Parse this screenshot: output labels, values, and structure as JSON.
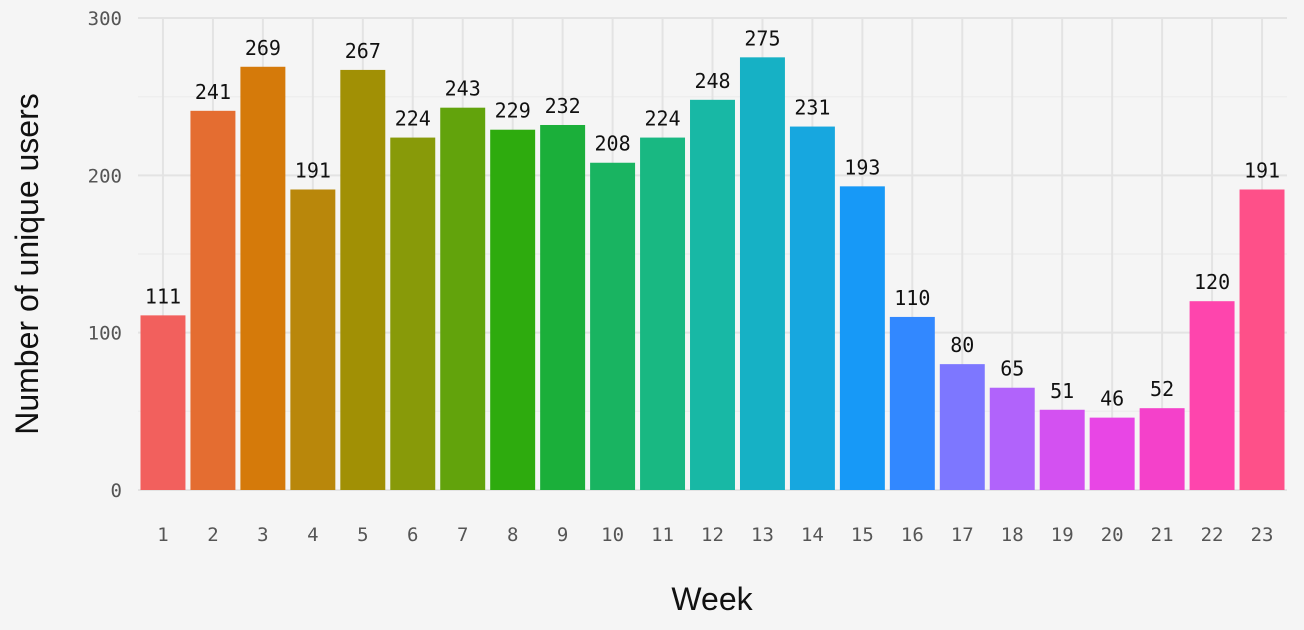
{
  "chart_data": {
    "type": "bar",
    "categories": [
      "1",
      "2",
      "3",
      "4",
      "5",
      "6",
      "7",
      "8",
      "9",
      "10",
      "11",
      "12",
      "13",
      "14",
      "15",
      "16",
      "17",
      "18",
      "19",
      "20",
      "21",
      "22",
      "23"
    ],
    "values": [
      111,
      241,
      269,
      191,
      267,
      224,
      243,
      229,
      232,
      208,
      224,
      248,
      275,
      231,
      193,
      110,
      80,
      65,
      51,
      46,
      52,
      120,
      191
    ],
    "colors": [
      "#f2605d",
      "#e46d31",
      "#d57a0a",
      "#b9870b",
      "#a19005",
      "#889a09",
      "#62a30c",
      "#2eab0e",
      "#1baf3a",
      "#19b461",
      "#19b882",
      "#18b8a5",
      "#16b1c5",
      "#17a7df",
      "#1799f7",
      "#3288ff",
      "#7d77ff",
      "#b163fb",
      "#d351f1",
      "#e846e5",
      "#f441ca",
      "#fe45ad",
      "#fe5089"
    ],
    "xlabel": "Week",
    "ylabel": "Number of unique users",
    "ylim": [
      0,
      300
    ],
    "yticks": [
      0,
      100,
      200,
      300
    ],
    "grid": true,
    "legend": "none"
  }
}
